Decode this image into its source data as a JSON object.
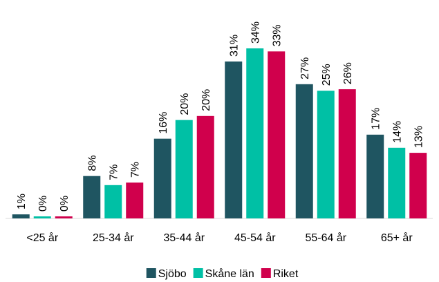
{
  "chart_data": {
    "type": "bar",
    "categories": [
      "<25 år",
      "25-34 år",
      "35-44 år",
      "45-54 år",
      "55-64 år",
      "65+ år"
    ],
    "series": [
      {
        "name": "Sjöbo",
        "color": "#1f5561",
        "values": [
          0.8,
          8.4,
          15.8,
          31.1,
          26.6,
          16.6
        ],
        "value_labels": [
          "1%",
          "8%",
          "16%",
          "31%",
          "27%",
          "17%"
        ]
      },
      {
        "name": "Skåne län",
        "color": "#00c0a5",
        "values": [
          0.4,
          6.6,
          19.5,
          33.7,
          25.3,
          14.0
        ],
        "value_labels": [
          "0%",
          "7%",
          "20%",
          "34%",
          "25%",
          "14%"
        ]
      },
      {
        "name": "Riket",
        "color": "#d0004c",
        "values": [
          0.4,
          7.1,
          20.3,
          33.1,
          25.6,
          13.0
        ],
        "value_labels": [
          "0%",
          "7%",
          "20%",
          "33%",
          "26%",
          "13%"
        ]
      }
    ],
    "legend": "bottom"
  }
}
